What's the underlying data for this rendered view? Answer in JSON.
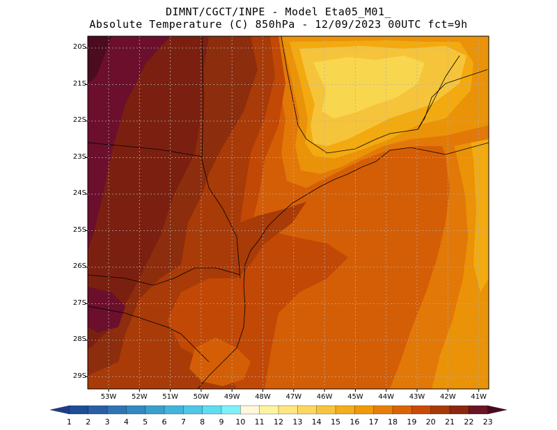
{
  "title": {
    "line1": "DIMNT/CGCT/INPE -  Model Eta05_M01_",
    "line2": "Absolute Temperature (C) 850hPa -  12/09/2023 00UTC fct=9h"
  },
  "map": {
    "lat_labels": [
      "20S",
      "21S",
      "22S",
      "23S",
      "24S",
      "25S",
      "26S",
      "27S",
      "28S",
      "29S"
    ],
    "lon_labels": [
      "53W",
      "52W",
      "51W",
      "50W",
      "49W",
      "48W",
      "47W",
      "46W",
      "45W",
      "44W",
      "43W",
      "42W",
      "41W"
    ]
  },
  "colorbar": {
    "labels": [
      "1",
      "2",
      "3",
      "4",
      "5",
      "6",
      "7",
      "8",
      "9",
      "10",
      "11",
      "12",
      "13",
      "14",
      "15",
      "16",
      "17",
      "18",
      "19",
      "20",
      "21",
      "22",
      "23"
    ],
    "colors": [
      "#1f3c88",
      "#1d4e96",
      "#2a5fa5",
      "#2f74b3",
      "#3389c0",
      "#3a9fcd",
      "#42b4da",
      "#4dc8e6",
      "#5fdcf0",
      "#7ff0fa",
      "#fff8dc",
      "#fff2a0",
      "#ffe680",
      "#fcd760",
      "#f8c440",
      "#f3ad1e",
      "#ef9a0a",
      "#e67e08",
      "#d96406",
      "#c94b05",
      "#a83a08",
      "#8a2810",
      "#6b1424",
      "#4a0a1e"
    ]
  },
  "fields": {
    "c23": "#4a0c1e",
    "c22": "#6b0f2c",
    "c21": "#7b2010",
    "c20": "#8c2d0d",
    "c19": "#a83b08",
    "c18": "#c24805",
    "c17": "#d45e06",
    "c16": "#e27808",
    "c15": "#ea9208",
    "c14": "#f2aa10",
    "c13": "#f6c43a",
    "c12": "#f8d64e"
  }
}
